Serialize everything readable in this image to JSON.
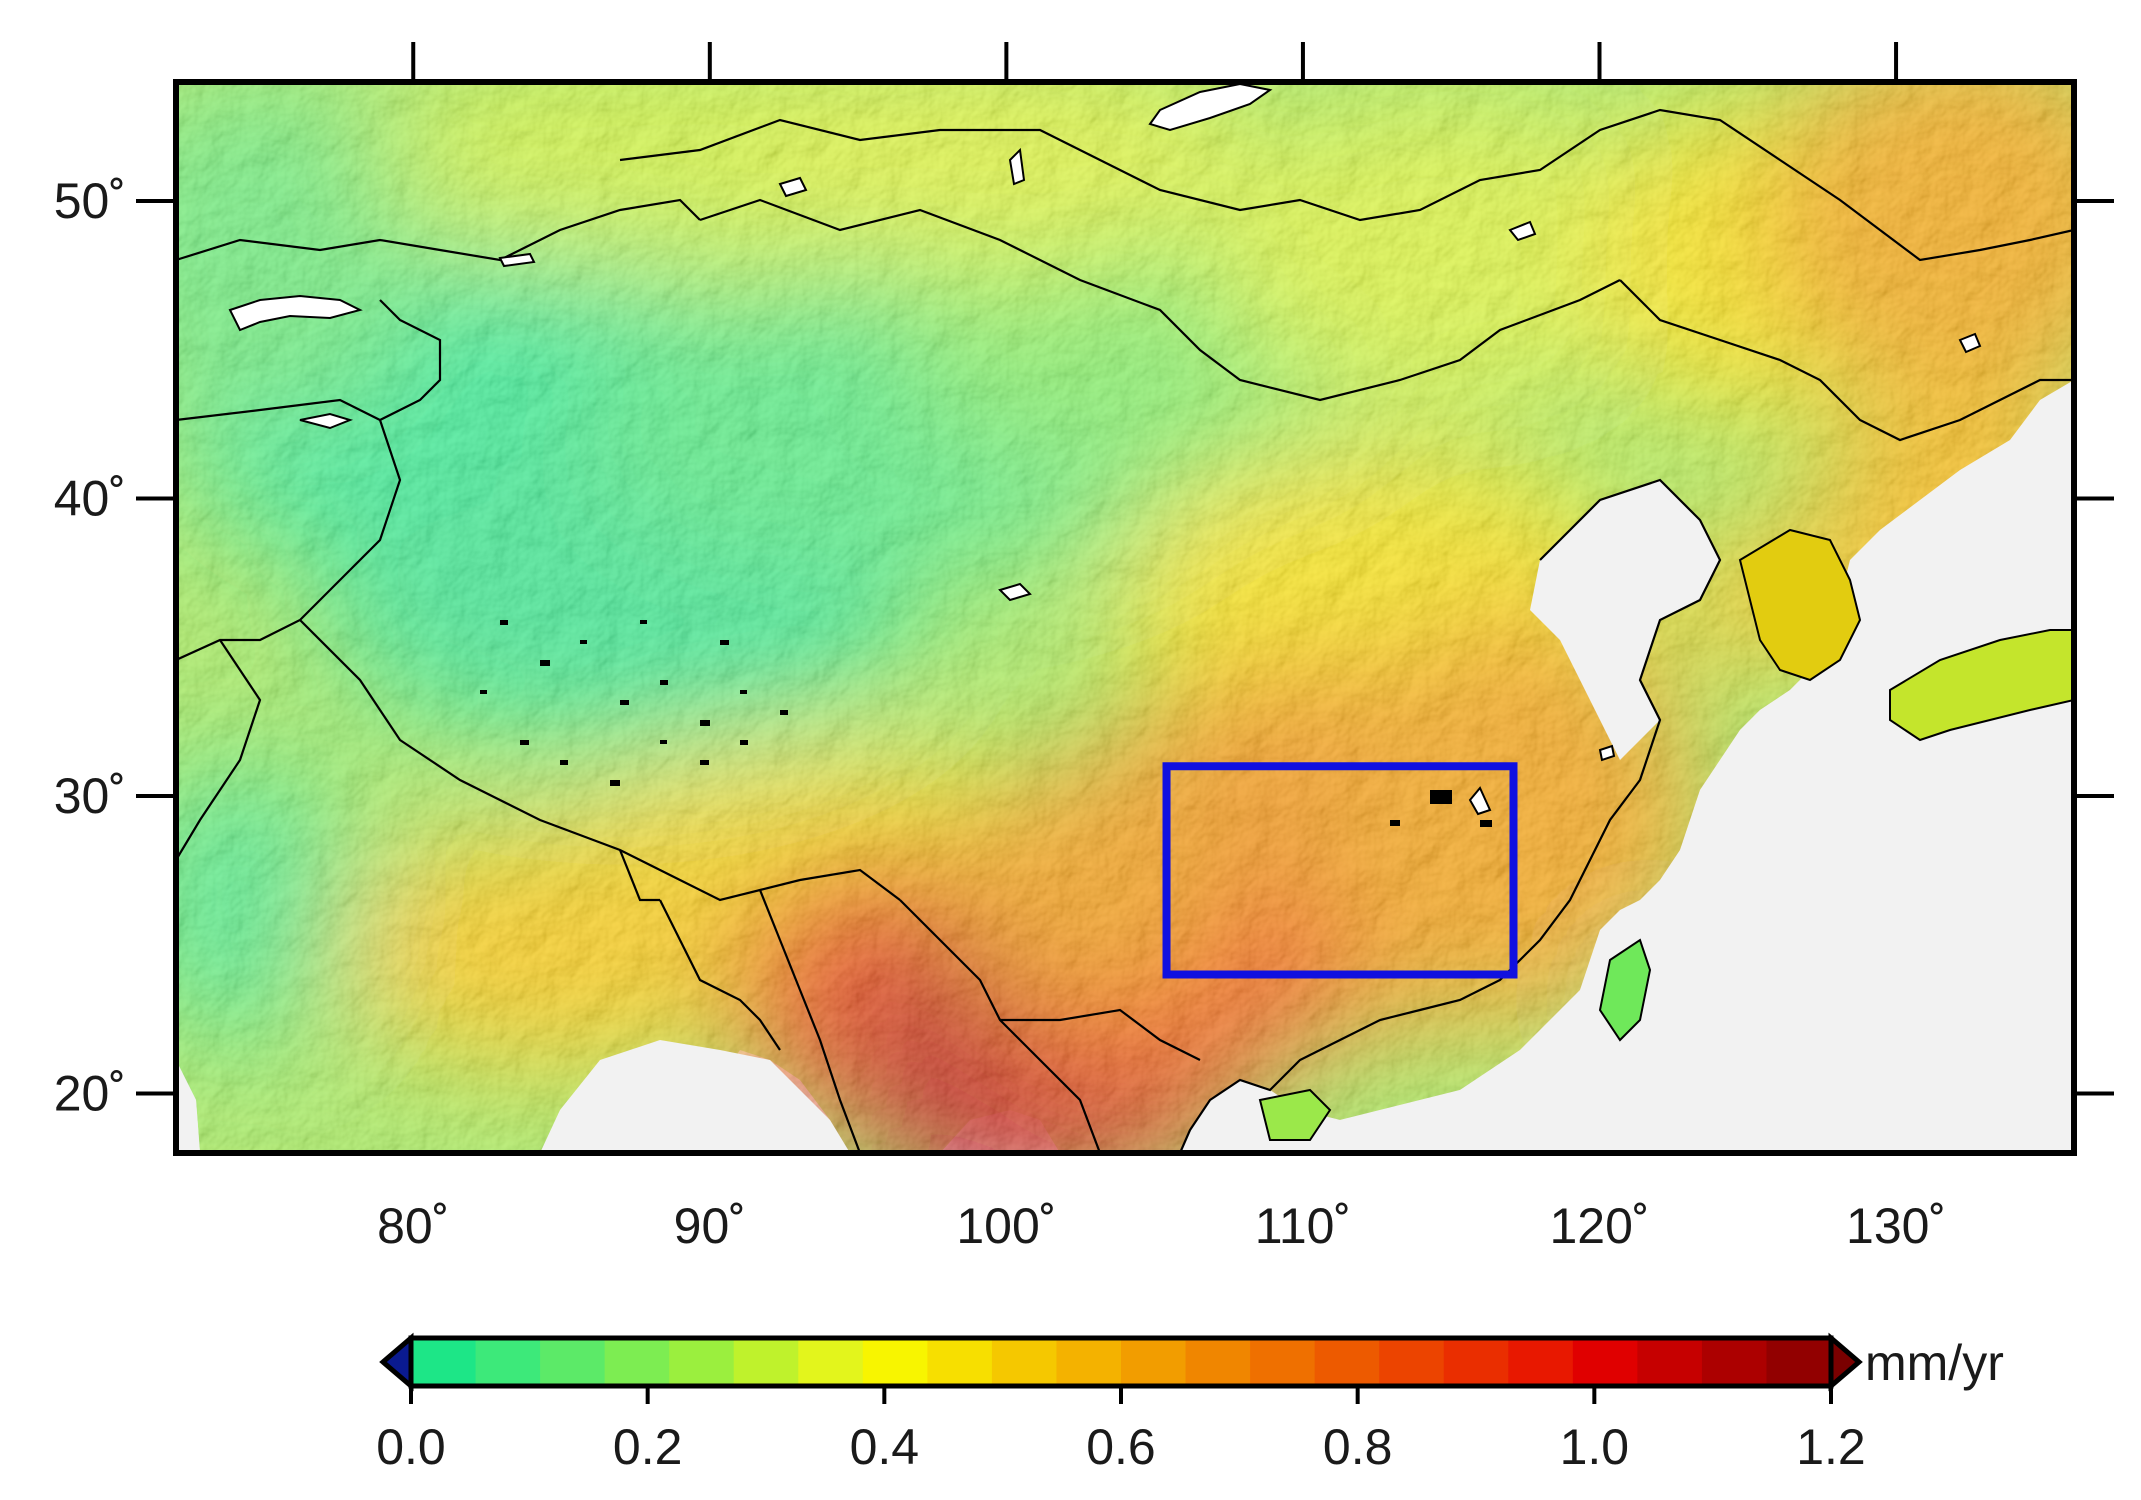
{
  "map": {
    "extent": {
      "lon_min": 72,
      "lon_max": 136,
      "lat_min": 18,
      "lat_max": 54
    },
    "x_ticks": [
      {
        "value": 80,
        "label": "80˚"
      },
      {
        "value": 90,
        "label": "90˚"
      },
      {
        "value": 100,
        "label": "100˚"
      },
      {
        "value": 110,
        "label": "110˚"
      },
      {
        "value": 120,
        "label": "120˚"
      },
      {
        "value": 130,
        "label": "130˚"
      }
    ],
    "y_ticks": [
      {
        "value": 20,
        "label": "20˚"
      },
      {
        "value": 30,
        "label": "30˚"
      },
      {
        "value": 40,
        "label": "40˚"
      },
      {
        "value": 50,
        "label": "50˚"
      }
    ],
    "study_area": {
      "lon_min": 105.4,
      "lon_max": 117.1,
      "lat_min": 24.0,
      "lat_max": 31.0,
      "color": "#1010e0"
    },
    "land_background": "#f2f2f2",
    "frame_color": "#000000"
  },
  "colorbar": {
    "unit": "mm/yr",
    "min": 0.0,
    "max": 1.2,
    "ticks": [
      {
        "value": 0.0,
        "label": "0.0"
      },
      {
        "value": 0.2,
        "label": "0.2"
      },
      {
        "value": 0.4,
        "label": "0.4"
      },
      {
        "value": 0.6,
        "label": "0.6"
      },
      {
        "value": 0.8,
        "label": "0.8"
      },
      {
        "value": 1.0,
        "label": "1.0"
      },
      {
        "value": 1.2,
        "label": "1.2"
      }
    ],
    "colors": [
      "#1de687",
      "#3de97a",
      "#5cea68",
      "#7ded52",
      "#9bef3e",
      "#bff22c",
      "#e3f51c",
      "#f8f500",
      "#f7df00",
      "#f5c800",
      "#f4b200",
      "#f29d00",
      "#f08600",
      "#ef7000",
      "#ed5a00",
      "#ec4400",
      "#ea2e00",
      "#e81800",
      "#e00000",
      "#c60000",
      "#ac0000",
      "#920000"
    ],
    "below_color": "#0a1a90",
    "above_color": "#7a0000"
  }
}
